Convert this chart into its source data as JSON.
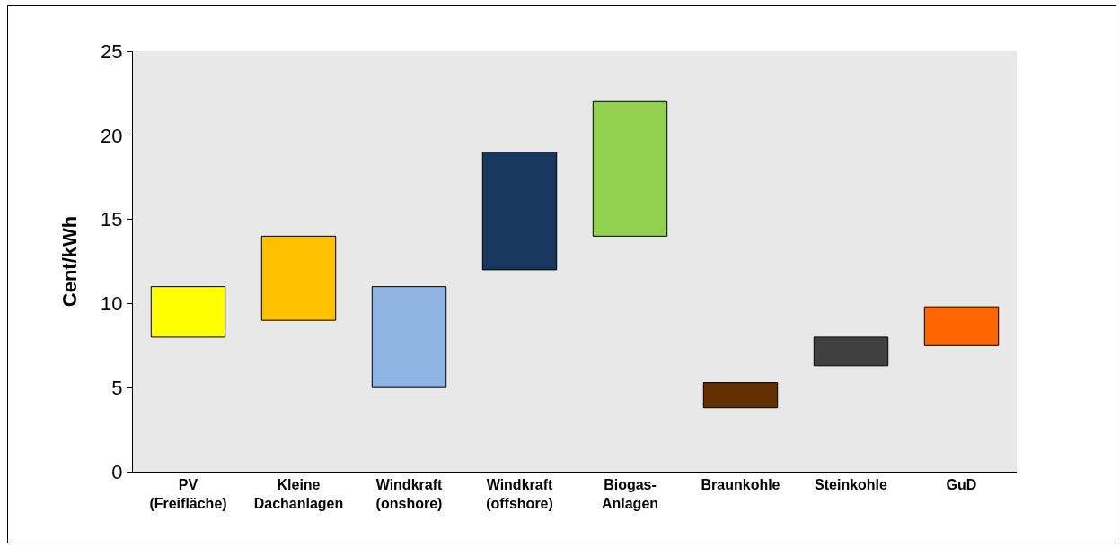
{
  "chart_data": {
    "type": "bar",
    "ylabel": "Cent/kWh",
    "categories": [
      "PV\n(Freifläche)",
      "Kleine\nDachanlagen",
      "Windkraft\n(onshore)",
      "Windkraft\n(offshore)",
      "Biogas-\nAnlagen",
      "Braunkohle",
      "Steinkohle",
      "GuD"
    ],
    "base": [
      8,
      9,
      5,
      12,
      14,
      3.8,
      6.3,
      7.5
    ],
    "values": [
      3,
      5,
      6,
      7,
      8,
      1.5,
      1.7,
      2.3
    ],
    "colors": [
      "#ffff00",
      "#ffc000",
      "#8db4e2",
      "#17375e",
      "#92d050",
      "#632f00",
      "#404040",
      "#ff6600"
    ],
    "ylim": [
      0,
      25
    ],
    "yticks": [
      0,
      5,
      10,
      15,
      20,
      25
    ],
    "grid": false
  }
}
